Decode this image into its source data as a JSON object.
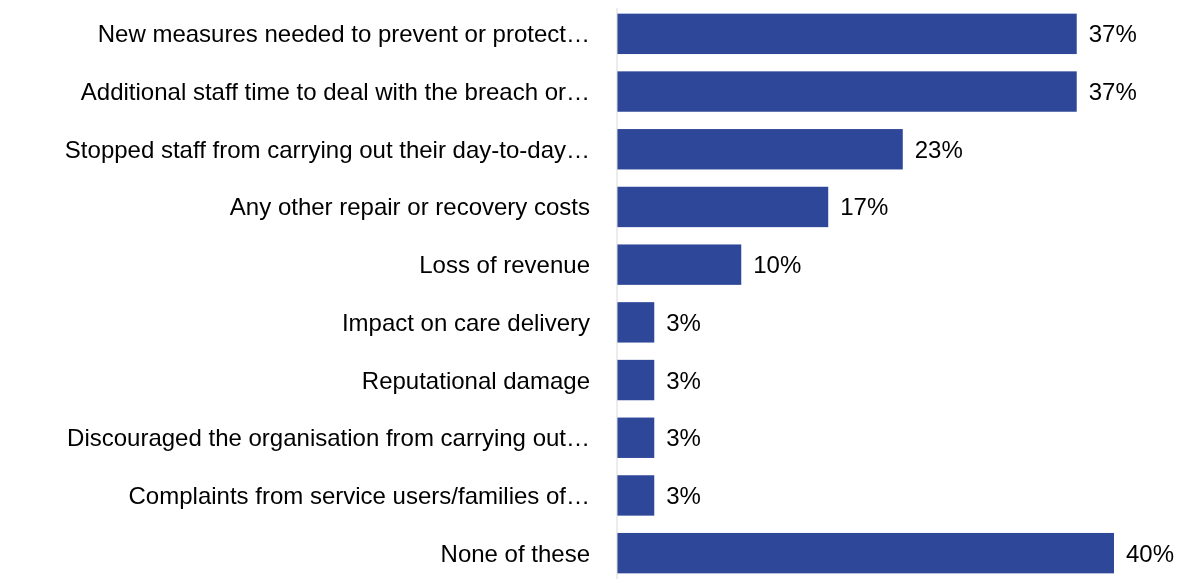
{
  "chart_data": {
    "type": "bar",
    "orientation": "horizontal",
    "categories": [
      "New measures needed to prevent or protect…",
      "Additional staff time to deal with the breach or…",
      "Stopped staff from carrying out their day-to-day…",
      "Any other repair or recovery costs",
      "Loss of revenue",
      "Impact on care delivery",
      "Reputational damage",
      "Discouraged the organisation from carrying out…",
      "Complaints from service users/families of…",
      "None of these"
    ],
    "values": [
      37,
      37,
      23,
      17,
      10,
      3,
      3,
      3,
      3,
      40
    ],
    "color": "#2e4799",
    "data_labels": true,
    "value_labels": [
      "37%",
      "37%",
      "23%",
      "17%",
      "10%",
      "3%",
      "3%",
      "3%",
      "3%",
      "40%"
    ],
    "grid": false
  }
}
